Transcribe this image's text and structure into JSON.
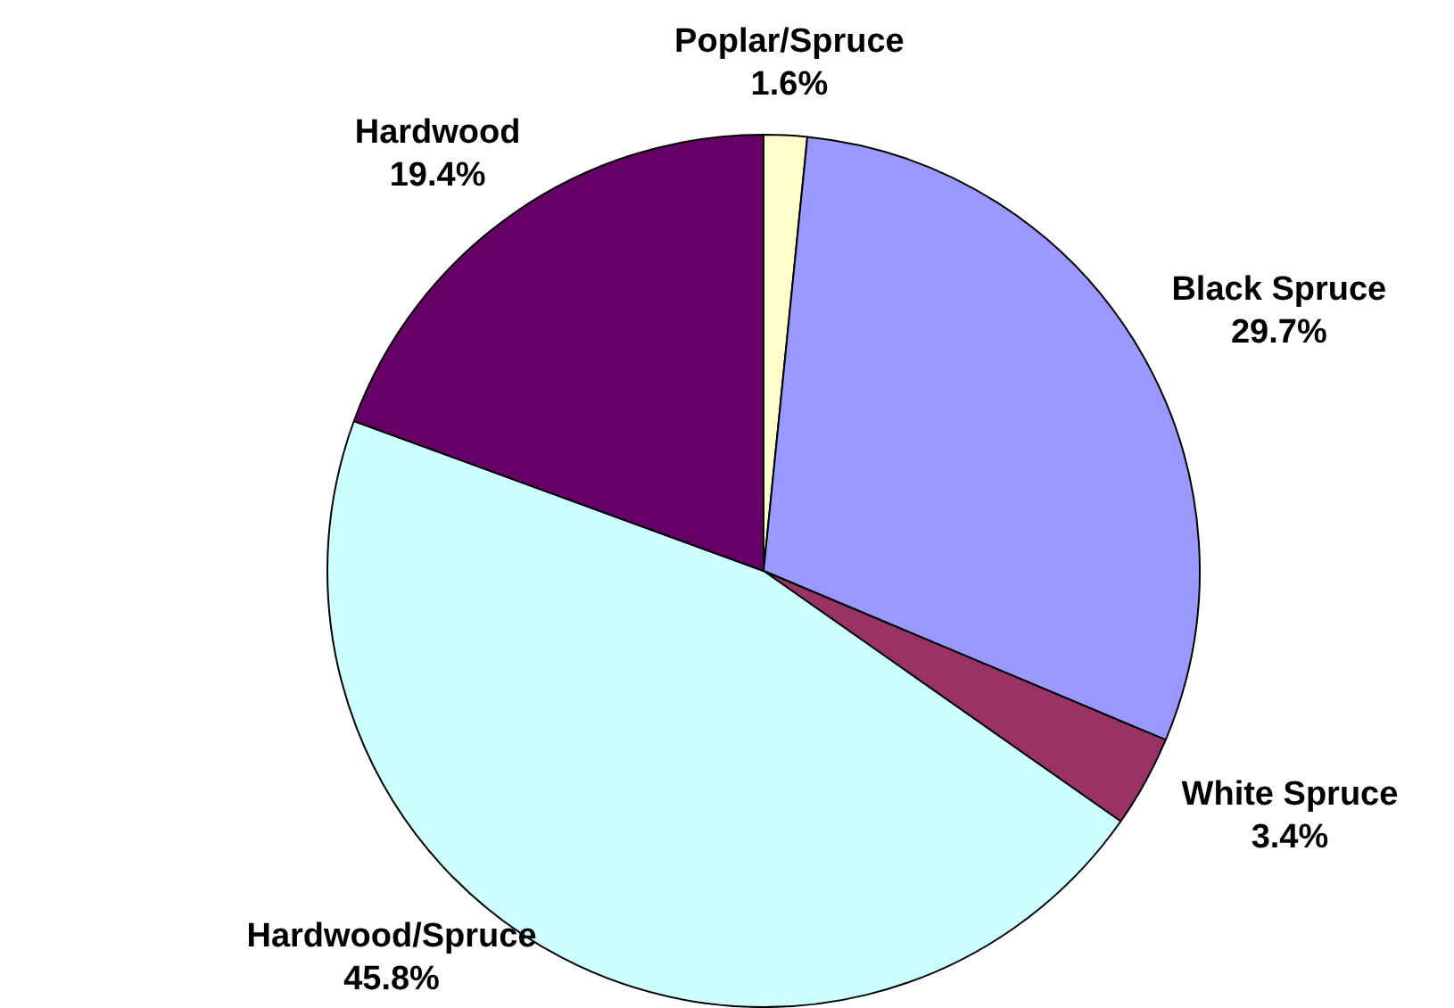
{
  "chart_data": {
    "type": "pie",
    "categories": [
      "Poplar/Spruce",
      "Black Spruce",
      "White Spruce",
      "Hardwood/Spruce",
      "Hardwood"
    ],
    "values": [
      1.6,
      29.7,
      3.4,
      45.8,
      19.4
    ],
    "value_labels": [
      "1.6%",
      "29.7%",
      "3.4%",
      "45.8%",
      "19.4%"
    ],
    "colors": [
      "#ffffcc",
      "#9999ff",
      "#993366",
      "#ccffff",
      "#660066"
    ],
    "legend": false
  }
}
